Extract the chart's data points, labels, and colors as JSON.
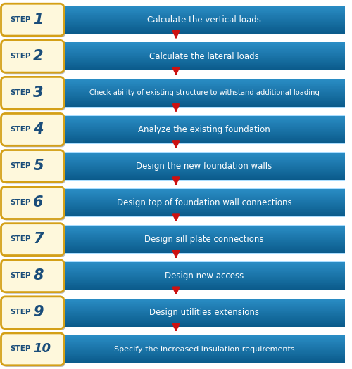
{
  "steps": [
    {
      "num": "1",
      "text": "Calculate the vertical loads"
    },
    {
      "num": "2",
      "text": "Calculate the lateral loads"
    },
    {
      "num": "3",
      "text": "Check ability of existing structure to withstand additional loading"
    },
    {
      "num": "4",
      "text": "Analyze the existing foundation"
    },
    {
      "num": "5",
      "text": "Design the new foundation walls"
    },
    {
      "num": "6",
      "text": "Design top of foundation wall connections"
    },
    {
      "num": "7",
      "text": "Design sill plate connections"
    },
    {
      "num": "8",
      "text": "Design new access"
    },
    {
      "num": "9",
      "text": "Design utilities extensions"
    },
    {
      "num": "10",
      "text": "Specify the increased insulation requirements"
    }
  ],
  "bar_color_top": "#2a8dc5",
  "bar_color_bottom": "#0a5a8a",
  "badge_fill_top": "#fef8dc",
  "badge_fill_bottom": "#f0c840",
  "badge_stroke": "#d4a017",
  "arrow_color": "#cc1111",
  "text_color": "#ffffff",
  "badge_text_color": "#1a4d7a",
  "bg_color": "#ffffff",
  "fig_width": 5.0,
  "fig_height": 5.25
}
